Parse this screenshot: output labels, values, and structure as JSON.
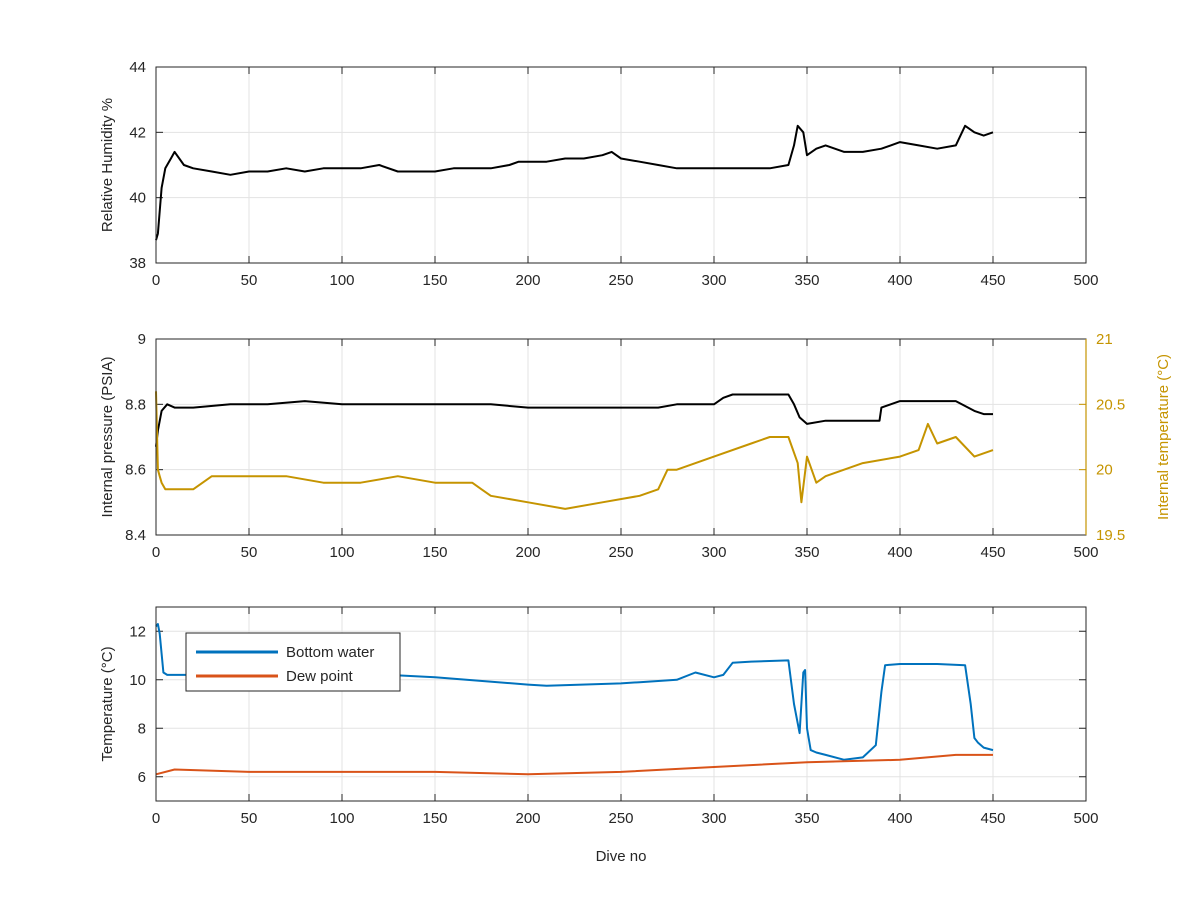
{
  "figure": {
    "xlabel": "Dive no"
  },
  "chart_data": [
    {
      "type": "line",
      "ylabel": "Relative Humidity %",
      "xlim": [
        0,
        500
      ],
      "ylim": [
        38,
        44
      ],
      "xticks": [
        "0",
        "50",
        "100",
        "150",
        "200",
        "250",
        "300",
        "350",
        "400",
        "450",
        "500"
      ],
      "yticks": [
        "38",
        "40",
        "42",
        "44"
      ],
      "grid": true,
      "series": [
        {
          "color": "#000000",
          "x": [
            0,
            1,
            3,
            5,
            8,
            10,
            15,
            20,
            30,
            40,
            50,
            60,
            70,
            80,
            90,
            100,
            110,
            120,
            130,
            140,
            150,
            160,
            170,
            180,
            190,
            195,
            200,
            210,
            220,
            230,
            240,
            245,
            250,
            260,
            270,
            280,
            290,
            300,
            310,
            320,
            330,
            340,
            343,
            345,
            348,
            350,
            355,
            360,
            370,
            380,
            390,
            400,
            410,
            420,
            430,
            435,
            440,
            445,
            450
          ],
          "y": [
            38.7,
            38.9,
            40.3,
            40.9,
            41.2,
            41.4,
            41.0,
            40.9,
            40.8,
            40.7,
            40.8,
            40.8,
            40.9,
            40.8,
            40.9,
            40.9,
            40.9,
            41.0,
            40.8,
            40.8,
            40.8,
            40.9,
            40.9,
            40.9,
            41.0,
            41.1,
            41.1,
            41.1,
            41.2,
            41.2,
            41.3,
            41.4,
            41.2,
            41.1,
            41.0,
            40.9,
            40.9,
            40.9,
            40.9,
            40.9,
            40.9,
            41.0,
            41.6,
            42.2,
            42.0,
            41.3,
            41.5,
            41.6,
            41.4,
            41.4,
            41.5,
            41.7,
            41.6,
            41.5,
            41.6,
            42.2,
            42.0,
            41.9,
            42.0
          ]
        }
      ]
    },
    {
      "type": "line",
      "ylabel": "Internal pressure (PSIA)",
      "ylabel_right": "Internal temperature (°C)",
      "xlim": [
        0,
        500
      ],
      "ylim": [
        8.4,
        9
      ],
      "ylim_right": [
        19.5,
        21
      ],
      "xticks": [
        "0",
        "50",
        "100",
        "150",
        "200",
        "250",
        "300",
        "350",
        "400",
        "450",
        "500"
      ],
      "yticks": [
        "8.4",
        "8.6",
        "8.8",
        "9"
      ],
      "yticks_right": [
        "19.5",
        "20",
        "20.5",
        "21"
      ],
      "right_axis_color": "#c59400",
      "grid": true,
      "series": [
        {
          "color": "#000000",
          "axis": "left",
          "x": [
            0,
            1,
            3,
            6,
            10,
            20,
            40,
            60,
            80,
            100,
            120,
            140,
            160,
            180,
            200,
            220,
            240,
            260,
            270,
            280,
            290,
            300,
            305,
            310,
            320,
            330,
            340,
            343,
            346,
            350,
            360,
            370,
            380,
            389,
            390,
            395,
            400,
            410,
            420,
            430,
            440,
            445,
            450
          ],
          "y": [
            8.67,
            8.72,
            8.78,
            8.8,
            8.79,
            8.79,
            8.8,
            8.8,
            8.81,
            8.8,
            8.8,
            8.8,
            8.8,
            8.8,
            8.79,
            8.79,
            8.79,
            8.79,
            8.79,
            8.8,
            8.8,
            8.8,
            8.82,
            8.83,
            8.83,
            8.83,
            8.83,
            8.8,
            8.76,
            8.74,
            8.75,
            8.75,
            8.75,
            8.75,
            8.79,
            8.8,
            8.81,
            8.81,
            8.81,
            8.81,
            8.78,
            8.77,
            8.77
          ]
        },
        {
          "color": "#c59400",
          "axis": "right",
          "x": [
            0,
            1,
            2,
            3,
            5,
            10,
            20,
            30,
            50,
            70,
            90,
            110,
            130,
            150,
            170,
            175,
            180,
            200,
            220,
            240,
            260,
            270,
            275,
            280,
            300,
            320,
            330,
            340,
            345,
            347,
            350,
            355,
            360,
            380,
            400,
            410,
            415,
            420,
            430,
            440,
            450
          ],
          "y": [
            20.6,
            20.0,
            19.95,
            19.9,
            19.85,
            19.85,
            19.85,
            19.95,
            19.95,
            19.95,
            19.9,
            19.9,
            19.95,
            19.9,
            19.9,
            19.85,
            19.8,
            19.75,
            19.7,
            19.75,
            19.8,
            19.85,
            20.0,
            20.0,
            20.1,
            20.2,
            20.25,
            20.25,
            20.05,
            19.75,
            20.1,
            19.9,
            19.95,
            20.05,
            20.1,
            20.15,
            20.35,
            20.2,
            20.25,
            20.1,
            20.15
          ]
        }
      ]
    },
    {
      "type": "line",
      "ylabel": "Temperature (°C)",
      "xlim": [
        0,
        500
      ],
      "ylim": [
        5,
        13
      ],
      "xticks": [
        "0",
        "50",
        "100",
        "150",
        "200",
        "250",
        "300",
        "350",
        "400",
        "450",
        "500"
      ],
      "yticks": [
        "6",
        "8",
        "10",
        "12"
      ],
      "grid": true,
      "legend": "top-left",
      "series": [
        {
          "name": "Bottom water",
          "color": "#0072bd",
          "x": [
            0,
            1,
            2,
            4,
            6,
            20,
            50,
            100,
            150,
            200,
            210,
            250,
            260,
            270,
            280,
            290,
            300,
            305,
            310,
            320,
            340,
            343,
            346,
            348,
            349,
            350,
            352,
            355,
            360,
            370,
            380,
            387,
            390,
            392,
            400,
            420,
            435,
            438,
            440,
            442,
            445,
            450
          ],
          "y": [
            12.2,
            12.3,
            11.9,
            10.3,
            10.2,
            10.2,
            10.3,
            10.3,
            10.1,
            9.8,
            9.75,
            9.85,
            9.9,
            9.95,
            10.0,
            10.3,
            10.1,
            10.2,
            10.7,
            10.75,
            10.8,
            9.0,
            7.8,
            10.3,
            10.4,
            8.0,
            7.1,
            7.0,
            6.9,
            6.7,
            6.8,
            7.3,
            9.5,
            10.6,
            10.65,
            10.65,
            10.6,
            9.0,
            7.6,
            7.4,
            7.2,
            7.1
          ]
        },
        {
          "name": "Dew point",
          "color": "#d95319",
          "x": [
            0,
            10,
            50,
            100,
            150,
            200,
            250,
            300,
            350,
            400,
            430,
            440,
            450
          ],
          "y": [
            6.1,
            6.3,
            6.2,
            6.2,
            6.2,
            6.1,
            6.2,
            6.4,
            6.6,
            6.7,
            6.9,
            6.9,
            6.9
          ]
        }
      ]
    }
  ]
}
